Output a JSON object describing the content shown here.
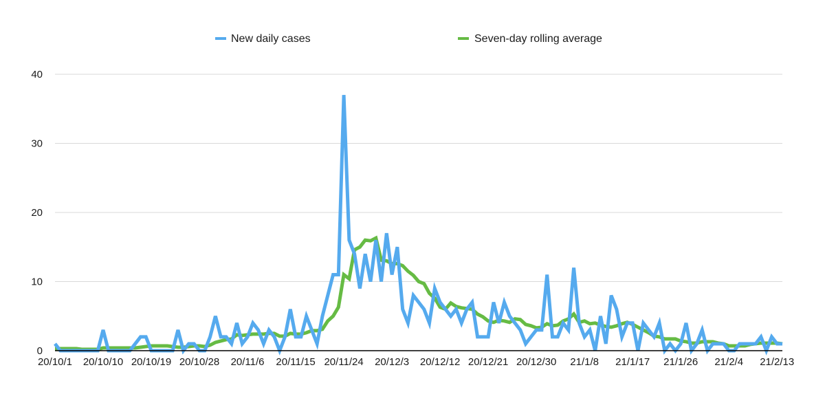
{
  "chart_data": {
    "type": "line",
    "title": "",
    "xlabel": "",
    "ylabel": "",
    "ylim": [
      0,
      40
    ],
    "yticks": [
      0,
      10,
      20,
      30,
      40
    ],
    "grid": true,
    "legend_position": "top-center",
    "start_date": "2020-10-01",
    "x_tick_labels": [
      "20/10/1",
      "20/10/10",
      "20/10/19",
      "20/10/28",
      "20/11/6",
      "20/11/15",
      "20/11/24",
      "20/12/3",
      "20/12/12",
      "20/12/21",
      "20/12/30",
      "21/1/8",
      "21/1/17",
      "21/1/26",
      "21/2/4",
      "21/2/13"
    ],
    "series": [
      {
        "name": "New daily cases",
        "color": "#55aaee",
        "values": [
          1,
          0,
          0,
          0,
          0,
          0,
          0,
          0,
          0,
          3,
          0,
          0,
          0,
          0,
          0,
          1,
          2,
          2,
          0,
          0,
          0,
          0,
          0,
          3,
          0,
          1,
          1,
          0,
          0,
          2,
          5,
          2,
          2,
          1,
          4,
          1,
          2,
          4,
          3,
          1,
          3,
          2,
          0,
          2,
          6,
          2,
          2,
          5,
          3,
          1,
          5,
          8,
          11,
          11,
          37,
          16,
          14,
          9,
          14,
          10,
          16,
          10,
          17,
          11,
          15,
          6,
          4,
          8,
          7,
          6,
          4,
          9,
          7,
          6,
          5,
          6,
          4,
          6,
          7,
          2,
          2,
          2,
          7,
          4,
          7,
          5,
          4,
          3,
          1,
          2,
          3,
          3,
          11,
          2,
          2,
          4,
          3,
          12,
          4,
          2,
          3,
          0,
          5,
          1,
          8,
          6,
          2,
          4,
          4,
          0,
          4,
          3,
          2,
          4,
          0,
          1,
          0,
          1,
          4,
          0,
          1,
          3,
          0,
          1,
          1,
          1,
          0,
          0,
          1,
          1,
          1,
          1,
          2,
          0,
          2,
          1,
          1
        ],
        "sample_values": [
          1,
          0,
          0,
          0,
          0,
          0,
          0,
          0,
          0,
          3
        ]
      },
      {
        "name": "Seven-day rolling average",
        "color": "#66bb44",
        "values": [
          0.3,
          0.3,
          0.3,
          0.3,
          0.3,
          0.2,
          0.2,
          0.2,
          0.2,
          0.4,
          0.4,
          0.4,
          0.4,
          0.4,
          0.4,
          0.4,
          0.5,
          0.6,
          0.7,
          0.7,
          0.7,
          0.7,
          0.6,
          0.5,
          0.5,
          0.6,
          0.7,
          0.7,
          0.6,
          0.8,
          1.2,
          1.4,
          1.6,
          1.7,
          2.3,
          2.2,
          2.3,
          2.4,
          2.4,
          2.4,
          2.5,
          2.5,
          2.1,
          2.1,
          2.5,
          2.4,
          2.4,
          2.6,
          2.9,
          2.9,
          3.1,
          4.3,
          5,
          6.3,
          11,
          10.4,
          14.6,
          15,
          16,
          15.9,
          16.3,
          13.1,
          13,
          12.6,
          12.6,
          12.3,
          11.5,
          10.9,
          10,
          9.7,
          8.3,
          7.6,
          6.3,
          6,
          6.9,
          6.4,
          6.2,
          6.1,
          6,
          5.3,
          4.9,
          4.3,
          4.1,
          4.4,
          4.3,
          4.1,
          4.6,
          4.5,
          3.8,
          3.6,
          3.3,
          3.4,
          3.9,
          3.6,
          3.7,
          4.3,
          4.6,
          5.3,
          4.1,
          4.3,
          3.9,
          4,
          3.7,
          3.5,
          3.4,
          3.6,
          3.9,
          4.1,
          3.8,
          3.4,
          3,
          2.6,
          2.1,
          2,
          1.7,
          1.7,
          1.7,
          1.4,
          1.3,
          1.1,
          1.1,
          1.3,
          1.3,
          1.3,
          1.1,
          1,
          0.7,
          0.7,
          0.7,
          0.7,
          0.9,
          1,
          1.1,
          1.1,
          1.1,
          1.1,
          1
        ],
        "sample_values": [
          0.3,
          0.3,
          0.3,
          0.3,
          0.3,
          0.2,
          0.2,
          0.2,
          0.2,
          0.4
        ]
      }
    ]
  }
}
